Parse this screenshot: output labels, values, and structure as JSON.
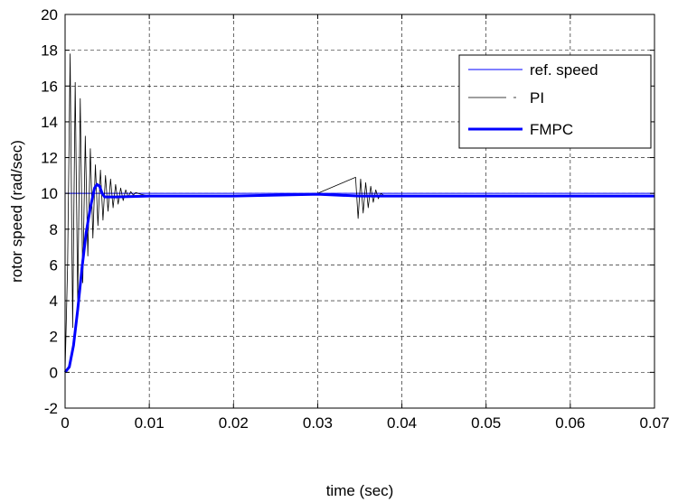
{
  "chart_data": {
    "type": "line",
    "xlabel": "time (sec)",
    "ylabel": "rotor speed (rad/sec)",
    "xlim": [
      0,
      0.07
    ],
    "ylim": [
      -2,
      20
    ],
    "xticks": [
      0,
      0.01,
      0.02,
      0.03,
      0.04,
      0.05,
      0.06,
      0.07
    ],
    "xtick_labels": [
      "0",
      "0.01",
      "0.02",
      "0.03",
      "0.04",
      "0.05",
      "0.06",
      "0.07"
    ],
    "yticks": [
      -2,
      0,
      2,
      4,
      6,
      8,
      10,
      12,
      14,
      16,
      18,
      20
    ],
    "ytick_labels": [
      "-2",
      "0",
      "2",
      "4",
      "6",
      "8",
      "10",
      "12",
      "14",
      "16",
      "18",
      "20"
    ],
    "grid": true,
    "legend_position": "top-right",
    "series": [
      {
        "name": "ref. speed",
        "color": "#0000ff",
        "style": "solid-thin",
        "x": [
          0,
          0.07
        ],
        "y": [
          10,
          10
        ]
      },
      {
        "name": "PI",
        "color": "#000000",
        "style": "dash-dot-thin",
        "x": [
          0,
          0.0003,
          0.0006,
          0.0009,
          0.0012,
          0.0015,
          0.0018,
          0.0021,
          0.0024,
          0.0027,
          0.003,
          0.0033,
          0.0036,
          0.0039,
          0.0042,
          0.0045,
          0.0048,
          0.0051,
          0.0054,
          0.0057,
          0.006,
          0.0063,
          0.0066,
          0.0069,
          0.0072,
          0.0075,
          0.0078,
          0.0081,
          0.0084,
          0.009,
          0.01,
          0.02,
          0.03,
          0.0345,
          0.0348,
          0.0351,
          0.0354,
          0.0357,
          0.036,
          0.0363,
          0.0366,
          0.0369,
          0.0372,
          0.0375,
          0.038,
          0.04,
          0.05,
          0.06,
          0.07
        ],
        "y": [
          0,
          6,
          17.8,
          2.5,
          16.2,
          4,
          15.3,
          5,
          13.2,
          6.5,
          12.5,
          7.5,
          11.6,
          8.2,
          11.3,
          8.5,
          11,
          9,
          10.8,
          9.2,
          10.5,
          9.4,
          10.3,
          9.6,
          10.2,
          9.8,
          10.1,
          9.9,
          10.05,
          9.95,
          9.85,
          9.85,
          10,
          10.9,
          8.6,
          10.8,
          8.9,
          10.6,
          9.2,
          10.4,
          9.5,
          10.2,
          9.7,
          10,
          9.85,
          9.85,
          9.85,
          9.85,
          9.85
        ]
      },
      {
        "name": "FMPC",
        "color": "#0000ff",
        "style": "solid-thick",
        "x": [
          0,
          0.0005,
          0.001,
          0.0015,
          0.002,
          0.0025,
          0.003,
          0.0035,
          0.0038,
          0.0041,
          0.0044,
          0.0047,
          0.005,
          0.006,
          0.01,
          0.02,
          0.03,
          0.035,
          0.04,
          0.05,
          0.06,
          0.07
        ],
        "y": [
          0,
          0.3,
          1.5,
          3.5,
          5.8,
          7.8,
          9.2,
          10.3,
          10.5,
          10.4,
          10,
          9.8,
          9.8,
          9.8,
          9.85,
          9.85,
          9.95,
          9.85,
          9.85,
          9.85,
          9.85,
          9.85
        ]
      }
    ]
  }
}
